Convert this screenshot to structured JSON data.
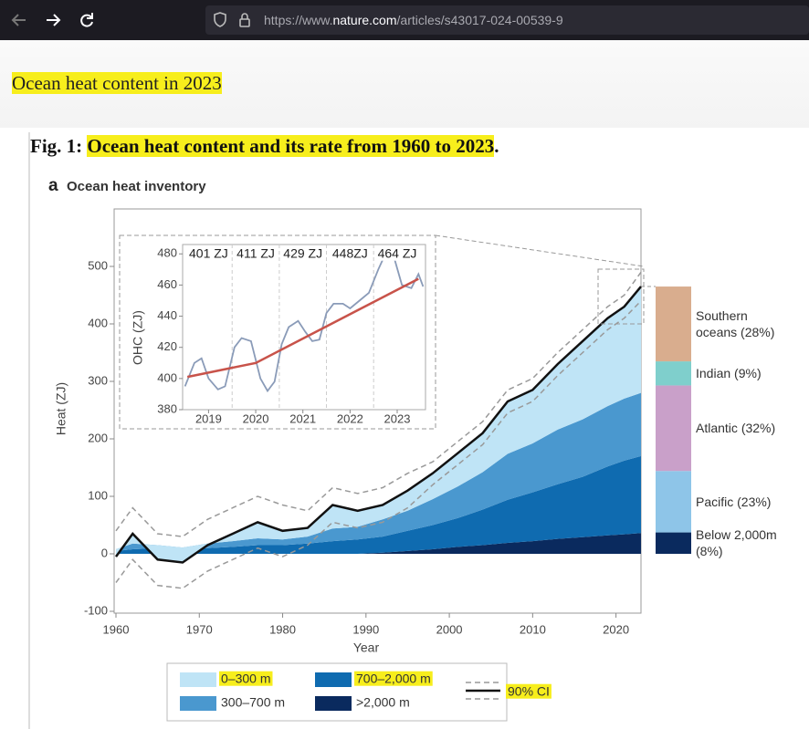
{
  "browser": {
    "url": {
      "prefix": "https://www.",
      "domain": "nature.com",
      "path": "/articles/s43017-024-00539-9"
    }
  },
  "header": {
    "title": "Ocean heat content in 2023"
  },
  "figure": {
    "label": "Fig. 1:",
    "caption": "Ocean heat content and its rate from 1960 to 2023",
    "caption_end": "."
  },
  "chart_data": [
    {
      "type": "area",
      "panel": "a",
      "title": "Ocean heat inventory",
      "xlabel": "Year",
      "ylabel": "Heat (ZJ)",
      "stacked": true,
      "x": [
        1960,
        1962,
        1965,
        1968,
        1971,
        1974,
        1977,
        1980,
        1983,
        1986,
        1989,
        1992,
        1995,
        1998,
        2001,
        2004,
        2007,
        2010,
        2013,
        2016,
        2019,
        2021,
        2023
      ],
      "series": [
        {
          "name": "0–300 m",
          "color": "#bfe4f6",
          "values": [
            -13,
            17,
            -25,
            -26,
            -3,
            13,
            28,
            15,
            15,
            41,
            28,
            25,
            35,
            45,
            58,
            68,
            91,
            93,
            114,
            136,
            153,
            160,
            185
          ]
        },
        {
          "name": "300–700 m",
          "color": "#4a98cf",
          "values": [
            3,
            10,
            5,
            3,
            8,
            10,
            12,
            10,
            12,
            22,
            22,
            30,
            35,
            45,
            55,
            65,
            80,
            85,
            95,
            100,
            105,
            108,
            110
          ]
        },
        {
          "name": "700–2,000 m",
          "color": "#0f6bb0",
          "values": [
            5,
            8,
            10,
            8,
            10,
            12,
            15,
            15,
            18,
            22,
            25,
            28,
            35,
            42,
            50,
            62,
            75,
            85,
            95,
            105,
            120,
            128,
            134
          ]
        },
        {
          "name": ">2,000 m",
          "color": "#0a2a5e",
          "values": [
            0,
            0,
            0,
            0,
            0,
            0,
            0,
            0,
            0,
            0,
            0,
            2,
            5,
            8,
            12,
            15,
            19,
            22,
            26,
            29,
            32,
            34,
            36
          ]
        }
      ],
      "ci": {
        "name": "90% CI",
        "color": "#999999",
        "lower": [
          -50,
          -10,
          -55,
          -60,
          -30,
          -10,
          10,
          -5,
          15,
          55,
          45,
          55,
          80,
          120,
          155,
          190,
          245,
          265,
          310,
          350,
          390,
          410,
          440
        ],
        "upper": [
          40,
          80,
          35,
          30,
          60,
          80,
          100,
          85,
          75,
          115,
          105,
          115,
          140,
          160,
          195,
          230,
          285,
          305,
          350,
          390,
          430,
          450,
          490
        ]
      },
      "xlim": [
        1960,
        2023
      ],
      "ylim": [
        -100,
        600
      ],
      "xticks": [
        1960,
        1970,
        1980,
        1990,
        2000,
        2010,
        2020
      ],
      "yticks": [
        -100,
        0,
        100,
        200,
        300,
        400,
        500
      ]
    },
    {
      "type": "line",
      "ylabel": "OHC (ZJ)",
      "x": [
        2018.5,
        2018.7,
        2018.85,
        2019.0,
        2019.2,
        2019.35,
        2019.55,
        2019.7,
        2019.9,
        2020.1,
        2020.25,
        2020.4,
        2020.55,
        2020.7,
        2020.9,
        2021.05,
        2021.2,
        2021.35,
        2021.5,
        2021.65,
        2021.85,
        2022.0,
        2022.2,
        2022.4,
        2022.6,
        2022.75,
        2022.95,
        2023.1,
        2023.3,
        2023.45,
        2023.55
      ],
      "values": [
        395,
        410,
        413,
        400,
        393,
        395,
        420,
        426,
        424,
        400,
        392,
        398,
        422,
        433,
        437,
        430,
        424,
        425,
        442,
        448,
        448,
        445,
        450,
        455,
        470,
        480,
        476,
        460,
        458,
        467,
        459
      ],
      "color": "#8a9bb8",
      "trend": {
        "x": [
          2018.55,
          2020.0,
          2023.45
        ],
        "values": [
          401,
          410,
          464
        ],
        "color": "#c8534a"
      },
      "annotations": [
        "401 ZJ",
        "411 ZJ",
        "429 ZJ",
        "448ZJ",
        "464 ZJ"
      ],
      "xlim": [
        2018.45,
        2023.6
      ],
      "ylim": [
        380,
        486
      ],
      "xticks": [
        2019,
        2020,
        2021,
        2022,
        2023
      ],
      "yticks": [
        380,
        400,
        420,
        440,
        460,
        480
      ]
    },
    {
      "type": "bar",
      "stacked": true,
      "categories": [
        "Below 2,000m",
        "Pacific",
        "Atlantic",
        "Indian",
        "Southern oceans"
      ],
      "values": [
        8,
        23,
        32,
        9,
        28
      ],
      "value_labels": [
        "(8%)",
        "(23%)",
        "(32%)",
        "(9%)",
        "(28%)"
      ],
      "colors": [
        "#0a2a5e",
        "#8ec5e8",
        "#c9a0c9",
        "#7fcfcc",
        "#d9ad8e"
      ]
    }
  ]
}
